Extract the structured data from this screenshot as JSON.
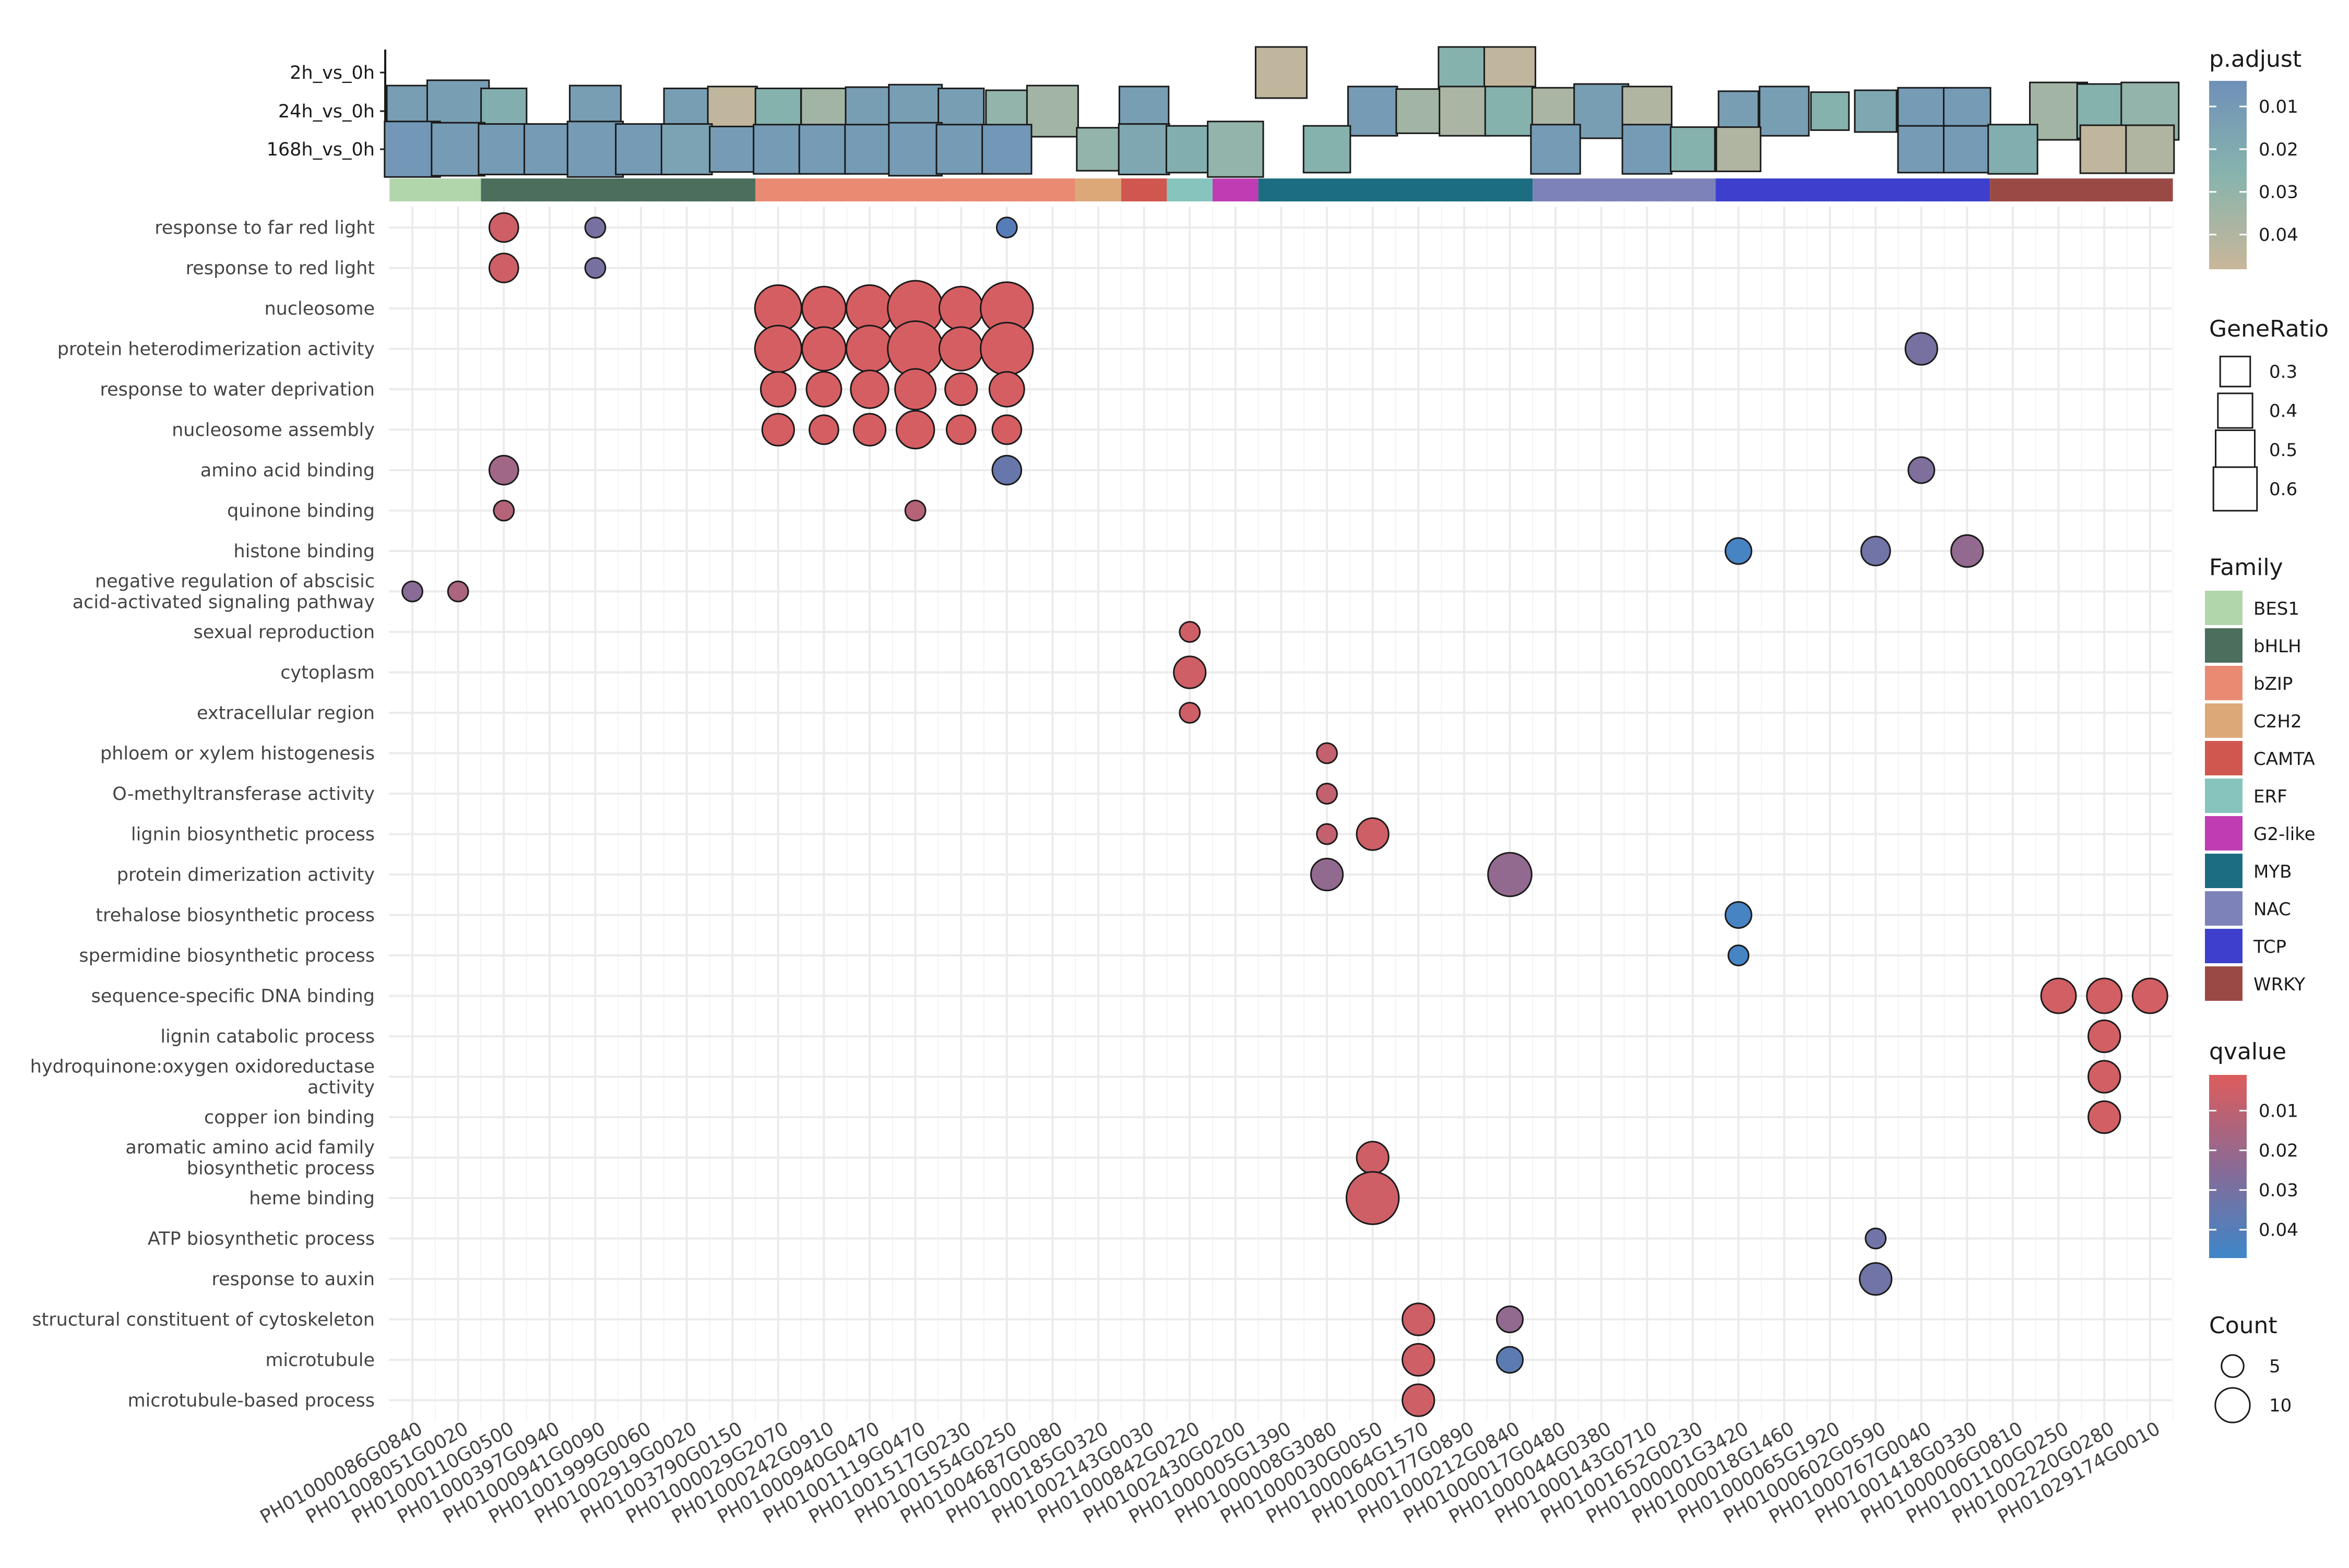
{
  "colors": {
    "padj_low": "#6f91b8",
    "padj_mid": "#87b4ad",
    "padj_high": "#c8b69a",
    "q_low": "#dc5d5d",
    "q_mid": "#8b6a94",
    "q_high": "#3f86c7",
    "grid": "#ebebeb",
    "mark_stroke": "#1a1a1a"
  },
  "chart_data": {
    "type": "scatter",
    "title": "",
    "xlabel": "",
    "ylabel": "",
    "grid": true,
    "legend_placement": "right",
    "genes": [
      "PH01000086G0840",
      "PH01008051G0020",
      "PH01000110G0500",
      "PH01000397G0940",
      "PH01000941G0090",
      "PH01001999G0060",
      "PH01002919G0020",
      "PH01003790G0150",
      "PH01000029G2070",
      "PH01000242G0910",
      "PH01000940G0470",
      "PH01001119G0470",
      "PH01001517G0230",
      "PH01001554G0250",
      "PH01004687G0080",
      "PH01000185G0320",
      "PH01002143G0030",
      "PH01000842G0220",
      "PH01002430G0200",
      "PH01000005G1390",
      "PH01000008G3080",
      "PH01000030G0050",
      "PH01000064G1570",
      "PH01000177G0890",
      "PH01000212G0840",
      "PH01000017G0480",
      "PH01000044G0380",
      "PH01000143G0710",
      "PH01001652G0230",
      "PH01000001G3420",
      "PH01000018G1460",
      "PH01000065G1920",
      "PH01000602G0590",
      "PH01000767G0040",
      "PH01001418G0330",
      "PH01000006G0810",
      "PH01001100G0250",
      "PH01002220G0280",
      "PH01029174G0010"
    ],
    "families": [
      {
        "name": "BES1",
        "color": "#b2d6ab",
        "start": 0,
        "end": 1
      },
      {
        "name": "bHLH",
        "color": "#4b6e5d",
        "start": 2,
        "end": 7
      },
      {
        "name": "bZIP",
        "color": "#e98b73",
        "start": 8,
        "end": 14
      },
      {
        "name": "C2H2",
        "color": "#dca878",
        "start": 15,
        "end": 15
      },
      {
        "name": "CAMTA",
        "color": "#d0574f",
        "start": 16,
        "end": 16
      },
      {
        "name": "ERF",
        "color": "#86c4bd",
        "start": 17,
        "end": 17
      },
      {
        "name": "G2-like",
        "color": "#c03cb3",
        "start": 18,
        "end": 18
      },
      {
        "name": "MYB",
        "color": "#1d6d82",
        "start": 19,
        "end": 24
      },
      {
        "name": "NAC",
        "color": "#7d83b9",
        "start": 25,
        "end": 28
      },
      {
        "name": "TCP",
        "color": "#3e40cd",
        "start": 29,
        "end": 34
      },
      {
        "name": "WRKY",
        "color": "#9a4a45",
        "start": 35,
        "end": 38
      }
    ],
    "comparisons": [
      "2h_vs_0h",
      "24h_vs_0h",
      "168h_vs_0h"
    ],
    "squares": [
      [
        0,
        19,
        0.45,
        0.045
      ],
      [
        0,
        23,
        0.45,
        0.025
      ],
      [
        0,
        24,
        0.45,
        0.045
      ],
      [
        1,
        0,
        0.45,
        0.012
      ],
      [
        1,
        1,
        0.62,
        0.012
      ],
      [
        1,
        2,
        0.36,
        0.022
      ],
      [
        1,
        4,
        0.45,
        0.012
      ],
      [
        1,
        6,
        0.36,
        0.012
      ],
      [
        1,
        7,
        0.42,
        0.045
      ],
      [
        1,
        8,
        0.36,
        0.025
      ],
      [
        1,
        9,
        0.36,
        0.035
      ],
      [
        1,
        10,
        0.4,
        0.012
      ],
      [
        1,
        11,
        0.48,
        0.012
      ],
      [
        1,
        12,
        0.36,
        0.012
      ],
      [
        1,
        13,
        0.3,
        0.03
      ],
      [
        1,
        14,
        0.45,
        0.035
      ],
      [
        1,
        16,
        0.42,
        0.012
      ],
      [
        1,
        21,
        0.42,
        0.01
      ],
      [
        1,
        22,
        0.34,
        0.035
      ],
      [
        1,
        23,
        0.42,
        0.038
      ],
      [
        1,
        24,
        0.42,
        0.025
      ],
      [
        1,
        25,
        0.38,
        0.038
      ],
      [
        1,
        26,
        0.5,
        0.012
      ],
      [
        1,
        27,
        0.42,
        0.04
      ],
      [
        1,
        29,
        0.27,
        0.012
      ],
      [
        1,
        30,
        0.42,
        0.012
      ],
      [
        1,
        31,
        0.24,
        0.025
      ],
      [
        1,
        32,
        0.3,
        0.018
      ],
      [
        1,
        33,
        0.38,
        0.01
      ],
      [
        1,
        34,
        0.38,
        0.01
      ],
      [
        1,
        36,
        0.55,
        0.035
      ],
      [
        1,
        37,
        0.5,
        0.025
      ],
      [
        1,
        38,
        0.55,
        0.03
      ],
      [
        2,
        0,
        0.52,
        0.008
      ],
      [
        2,
        1,
        0.48,
        0.01
      ],
      [
        2,
        2,
        0.44,
        0.01
      ],
      [
        2,
        3,
        0.44,
        0.01
      ],
      [
        2,
        4,
        0.52,
        0.01
      ],
      [
        2,
        5,
        0.44,
        0.01
      ],
      [
        2,
        6,
        0.44,
        0.015
      ],
      [
        2,
        7,
        0.36,
        0.01
      ],
      [
        2,
        8,
        0.42,
        0.01
      ],
      [
        2,
        9,
        0.42,
        0.01
      ],
      [
        2,
        10,
        0.42,
        0.01
      ],
      [
        2,
        11,
        0.48,
        0.01
      ],
      [
        2,
        12,
        0.42,
        0.01
      ],
      [
        2,
        13,
        0.42,
        0.008
      ],
      [
        2,
        15,
        0.32,
        0.03
      ],
      [
        2,
        16,
        0.44,
        0.018
      ],
      [
        2,
        17,
        0.38,
        0.022
      ],
      [
        2,
        18,
        0.52,
        0.03
      ],
      [
        2,
        20,
        0.38,
        0.025
      ],
      [
        2,
        24,
        0.0,
        0.0
      ],
      [
        2,
        25,
        0.42,
        0.01
      ],
      [
        2,
        27,
        0.42,
        0.01
      ],
      [
        2,
        28,
        0.34,
        0.025
      ],
      [
        2,
        29,
        0.34,
        0.04
      ],
      [
        2,
        33,
        0.38,
        0.01
      ],
      [
        2,
        34,
        0.38,
        0.01
      ],
      [
        2,
        35,
        0.42,
        0.022
      ],
      [
        2,
        37,
        0.4,
        0.045
      ],
      [
        2,
        38,
        0.4,
        0.04
      ]
    ],
    "terms": [
      "response to far red light",
      "response to red light",
      "nucleosome",
      "protein heterodimerization activity",
      "response to water deprivation",
      "nucleosome assembly",
      "amino acid binding",
      "quinone binding",
      "histone binding",
      "negative regulation of abscisic\nacid-activated signaling pathway",
      "sexual reproduction",
      "cytoplasm",
      "extracellular region",
      "phloem or xylem histogenesis",
      "O-methyltransferase activity",
      "lignin biosynthetic process",
      "protein dimerization activity",
      "trehalose biosynthetic process",
      "spermidine biosynthetic process",
      "sequence-specific DNA binding",
      "lignin catabolic process",
      "hydroquinone:oxygen oxidoreductase\nactivity",
      "copper ion binding",
      "aromatic amino acid family\nbiosynthetic process",
      "heme binding",
      "ATP biosynthetic process",
      "response to auxin",
      "structural constituent of cytoskeleton",
      "microtubule",
      "microtubule-based process"
    ],
    "dots": [
      [
        0,
        2,
        6,
        0.005
      ],
      [
        0,
        4,
        3,
        0.03
      ],
      [
        0,
        13,
        3,
        0.04
      ],
      [
        1,
        2,
        6,
        0.005
      ],
      [
        1,
        4,
        3,
        0.03
      ],
      [
        2,
        8,
        12,
        0.003
      ],
      [
        2,
        9,
        11,
        0.003
      ],
      [
        2,
        10,
        12,
        0.003
      ],
      [
        2,
        11,
        15,
        0.003
      ],
      [
        2,
        12,
        11,
        0.003
      ],
      [
        2,
        13,
        14,
        0.003
      ],
      [
        3,
        8,
        12,
        0.003
      ],
      [
        3,
        9,
        11,
        0.003
      ],
      [
        3,
        10,
        12,
        0.003
      ],
      [
        3,
        11,
        15,
        0.003
      ],
      [
        3,
        12,
        11,
        0.003
      ],
      [
        3,
        13,
        14,
        0.003
      ],
      [
        3,
        33,
        7,
        0.03
      ],
      [
        4,
        8,
        8,
        0.003
      ],
      [
        4,
        9,
        8,
        0.003
      ],
      [
        4,
        10,
        9,
        0.003
      ],
      [
        4,
        11,
        10,
        0.003
      ],
      [
        4,
        12,
        7,
        0.003
      ],
      [
        4,
        13,
        8,
        0.003
      ],
      [
        5,
        8,
        7,
        0.003
      ],
      [
        5,
        9,
        6,
        0.003
      ],
      [
        5,
        10,
        7,
        0.003
      ],
      [
        5,
        11,
        9,
        0.003
      ],
      [
        5,
        12,
        6,
        0.003
      ],
      [
        5,
        13,
        6,
        0.003
      ],
      [
        6,
        2,
        6,
        0.018
      ],
      [
        6,
        13,
        6,
        0.035
      ],
      [
        6,
        33,
        5,
        0.028
      ],
      [
        7,
        2,
        3,
        0.012
      ],
      [
        7,
        11,
        3,
        0.012
      ],
      [
        8,
        29,
        5,
        0.045
      ],
      [
        8,
        32,
        6,
        0.032
      ],
      [
        8,
        34,
        7,
        0.022
      ],
      [
        9,
        0,
        3,
        0.025
      ],
      [
        9,
        1,
        3,
        0.015
      ],
      [
        10,
        17,
        3,
        0.005
      ],
      [
        11,
        17,
        7,
        0.005
      ],
      [
        12,
        17,
        3,
        0.005
      ],
      [
        13,
        20,
        3,
        0.008
      ],
      [
        14,
        20,
        3,
        0.008
      ],
      [
        15,
        20,
        3,
        0.008
      ],
      [
        15,
        21,
        7,
        0.005
      ],
      [
        16,
        20,
        7,
        0.022
      ],
      [
        16,
        24,
        11,
        0.022
      ],
      [
        17,
        29,
        5,
        0.045
      ],
      [
        18,
        29,
        3,
        0.045
      ],
      [
        19,
        36,
        8,
        0.004
      ],
      [
        19,
        37,
        8,
        0.004
      ],
      [
        19,
        38,
        8,
        0.004
      ],
      [
        20,
        37,
        7,
        0.004
      ],
      [
        21,
        37,
        7,
        0.004
      ],
      [
        22,
        37,
        7,
        0.004
      ],
      [
        23,
        21,
        7,
        0.005
      ],
      [
        24,
        21,
        14,
        0.005
      ],
      [
        25,
        32,
        3,
        0.032
      ],
      [
        26,
        32,
        7,
        0.032
      ],
      [
        27,
        22,
        7,
        0.005
      ],
      [
        27,
        24,
        5,
        0.022
      ],
      [
        28,
        22,
        7,
        0.005
      ],
      [
        28,
        24,
        5,
        0.038
      ],
      [
        29,
        22,
        7,
        0.005
      ]
    ],
    "legends": {
      "padj": {
        "title": "p.adjust",
        "ticks": [
          "0.01",
          "0.02",
          "0.03",
          "0.04"
        ],
        "values": [
          0.01,
          0.02,
          0.03,
          0.04
        ],
        "range": [
          0.004,
          0.048
        ]
      },
      "generatio": {
        "title": "GeneRatio",
        "ticks": [
          "0.3",
          "0.4",
          "0.5",
          "0.6"
        ],
        "values": [
          0.3,
          0.4,
          0.5,
          0.6
        ]
      },
      "family": {
        "title": "Family"
      },
      "qvalue": {
        "title": "qvalue",
        "ticks": [
          "0.01",
          "0.02",
          "0.03",
          "0.04"
        ],
        "values": [
          0.01,
          0.02,
          0.03,
          0.04
        ],
        "range": [
          0.001,
          0.047
        ]
      },
      "count": {
        "title": "Count",
        "ticks": [
          "5",
          "10"
        ],
        "values": [
          5,
          10
        ]
      }
    }
  }
}
